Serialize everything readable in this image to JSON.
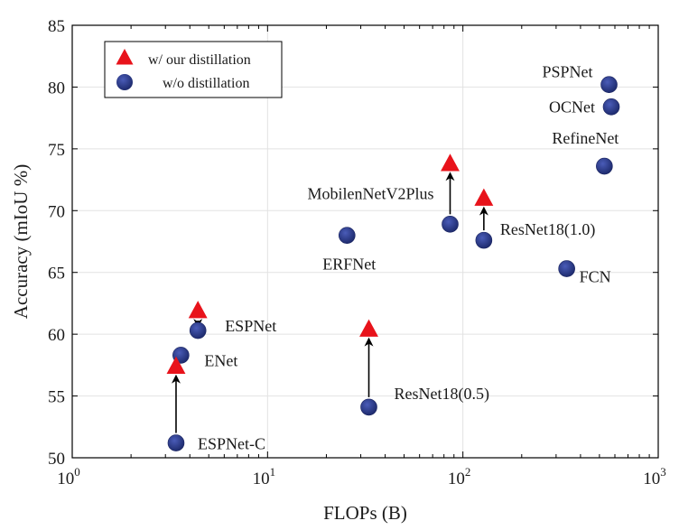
{
  "chart_data": {
    "type": "scatter",
    "xlabel": "FLOPs (B)",
    "ylabel": "Accuracy (mIoU %)",
    "x_scale": "log",
    "xlim": [
      1,
      1000
    ],
    "ylim": [
      50,
      85
    ],
    "grid": true,
    "legend_position": "top-left",
    "y_ticks": [
      "50",
      "55",
      "60",
      "65",
      "70",
      "75",
      "80",
      "85"
    ],
    "x_ticks": [
      {
        "base": "10",
        "exp": "0",
        "value": 1
      },
      {
        "base": "10",
        "exp": "1",
        "value": 10
      },
      {
        "base": "10",
        "exp": "2",
        "value": 100
      },
      {
        "base": "10",
        "exp": "3",
        "value": 1000
      }
    ],
    "legend": [
      {
        "name": "w/ our distillation",
        "marker": "triangle",
        "color": "#e8131b"
      },
      {
        "name": "w/o distillation",
        "marker": "circle",
        "color": "#2c3e8f"
      }
    ],
    "series": [
      {
        "name": "w/o distillation",
        "marker": "circle",
        "color": "#2c3e8f",
        "points": [
          {
            "label": "PSPNet",
            "x": 560,
            "y": 80.2,
            "label_anchor": "end",
            "label_dx": -18,
            "label_dy": -8
          },
          {
            "label": "OCNet",
            "x": 575,
            "y": 78.4,
            "label_anchor": "end",
            "label_dx": -18,
            "label_dy": 6
          },
          {
            "label": "RefineNet",
            "x": 530,
            "y": 73.6,
            "label_anchor": "start",
            "label_dx": -58,
            "label_dy": -25
          },
          {
            "label": "MobilenNetV2Plus",
            "x": 86,
            "y": 68.9,
            "label_anchor": "end",
            "label_dx": -18,
            "label_dy": -28
          },
          {
            "label": "ResNet18(1.0)",
            "x": 128,
            "y": 67.6,
            "label_anchor": "start",
            "label_dx": 18,
            "label_dy": -6
          },
          {
            "label": "ERFNet",
            "x": 25.5,
            "y": 68.0,
            "label_anchor": "start",
            "label_dx": -27,
            "label_dy": 38
          },
          {
            "label": "FCN",
            "x": 340,
            "y": 65.3,
            "label_anchor": "start",
            "label_dx": 14,
            "label_dy": 15
          },
          {
            "label": "ESPNet",
            "x": 4.4,
            "y": 60.3,
            "label_anchor": "start",
            "label_dx": 30,
            "label_dy": 1
          },
          {
            "label": "ENet",
            "x": 3.6,
            "y": 58.3,
            "label_anchor": "start",
            "label_dx": 26,
            "label_dy": 12
          },
          {
            "label": "ResNet18(0.5)",
            "x": 33,
            "y": 54.1,
            "label_anchor": "start",
            "label_dx": 28,
            "label_dy": -9
          },
          {
            "label": "ESPNet-C",
            "x": 3.4,
            "y": 51.2,
            "label_anchor": "start",
            "label_dx": 24,
            "label_dy": 7
          }
        ]
      },
      {
        "name": "w/ our distillation",
        "marker": "triangle",
        "color": "#e8131b",
        "points": [
          {
            "from": "MobilenNetV2Plus",
            "x": 86,
            "y": 73.8
          },
          {
            "from": "ResNet18(1.0)",
            "x": 128,
            "y": 71.0
          },
          {
            "from": "ESPNet",
            "x": 4.4,
            "y": 61.9
          },
          {
            "from": "ResNet18(0.5)",
            "x": 33,
            "y": 60.4
          },
          {
            "from": "ESPNet-C",
            "x": 3.4,
            "y": 57.4
          }
        ]
      }
    ],
    "arrows": [
      {
        "x": 86,
        "from_y": 68.9,
        "to_y": 73.8
      },
      {
        "x": 128,
        "from_y": 67.6,
        "to_y": 71.0
      },
      {
        "x": 4.4,
        "from_y": 60.3,
        "to_y": 61.9
      },
      {
        "x": 33,
        "from_y": 54.1,
        "to_y": 60.4
      },
      {
        "x": 3.4,
        "from_y": 51.2,
        "to_y": 57.4
      }
    ]
  }
}
